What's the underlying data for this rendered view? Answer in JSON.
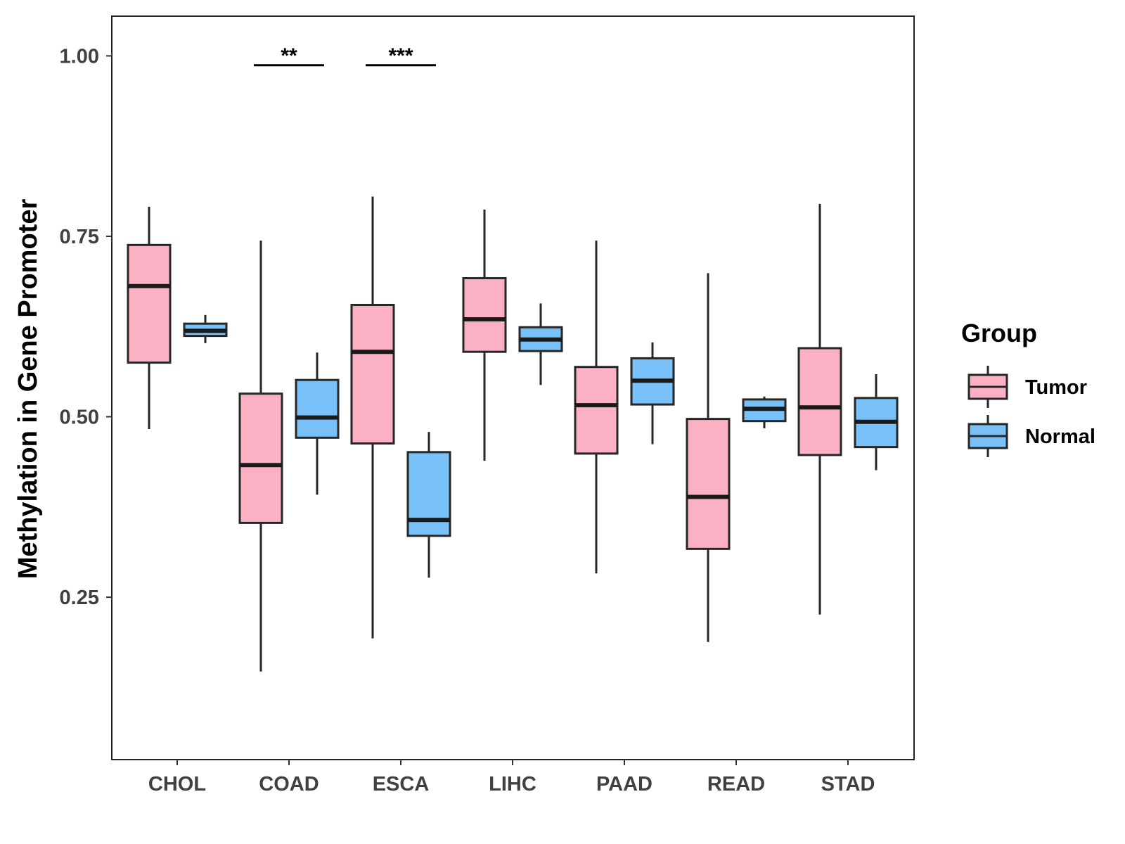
{
  "chart_data": {
    "type": "boxplot",
    "title": "",
    "xlabel": "",
    "ylabel": "Methylation in Gene Promoter",
    "ylim": [
      0.025,
      1.055
    ],
    "yticks": [
      0.25,
      0.5,
      0.75,
      1.0
    ],
    "ytick_labels": [
      "0.25",
      "0.50",
      "0.75",
      "1.00"
    ],
    "grid": false,
    "legend": {
      "title": "Group",
      "position": "right",
      "entries": [
        "Tumor",
        "Normal"
      ]
    },
    "colors": {
      "Tumor": "#fbb1c3",
      "Normal": "#78c0f8",
      "outline": "#262626",
      "median": "#1a1a1a"
    },
    "categories": [
      "CHOL",
      "COAD",
      "ESCA",
      "LIHC",
      "PAAD",
      "READ",
      "STAD"
    ],
    "series": [
      {
        "name": "Tumor",
        "boxes": [
          {
            "min": 0.483,
            "q1": 0.575,
            "median": 0.681,
            "q3": 0.738,
            "max": 0.791
          },
          {
            "min": 0.147,
            "q1": 0.353,
            "median": 0.433,
            "q3": 0.532,
            "max": 0.744
          },
          {
            "min": 0.193,
            "q1": 0.463,
            "median": 0.59,
            "q3": 0.655,
            "max": 0.805
          },
          {
            "min": 0.439,
            "q1": 0.59,
            "median": 0.635,
            "q3": 0.692,
            "max": 0.787
          },
          {
            "min": 0.283,
            "q1": 0.449,
            "median": 0.516,
            "q3": 0.569,
            "max": 0.744
          },
          {
            "min": 0.188,
            "q1": 0.317,
            "median": 0.389,
            "q3": 0.497,
            "max": 0.699
          },
          {
            "min": 0.226,
            "q1": 0.447,
            "median": 0.513,
            "q3": 0.595,
            "max": 0.795
          }
        ]
      },
      {
        "name": "Normal",
        "boxes": [
          {
            "min": 0.602,
            "q1": 0.612,
            "median": 0.619,
            "q3": 0.629,
            "max": 0.641
          },
          {
            "min": 0.392,
            "q1": 0.471,
            "median": 0.499,
            "q3": 0.551,
            "max": 0.589
          },
          {
            "min": 0.277,
            "q1": 0.335,
            "median": 0.357,
            "q3": 0.451,
            "max": 0.479
          },
          {
            "min": 0.544,
            "q1": 0.591,
            "median": 0.607,
            "q3": 0.624,
            "max": 0.657
          },
          {
            "min": 0.462,
            "q1": 0.517,
            "median": 0.55,
            "q3": 0.581,
            "max": 0.603
          },
          {
            "min": 0.484,
            "q1": 0.494,
            "median": 0.511,
            "q3": 0.524,
            "max": 0.528
          },
          {
            "min": 0.426,
            "q1": 0.458,
            "median": 0.493,
            "q3": 0.526,
            "max": 0.559
          }
        ]
      }
    ],
    "annotations": [
      {
        "category": "COAD",
        "label": "**",
        "y": 0.987
      },
      {
        "category": "ESCA",
        "label": "***",
        "y": 0.987
      }
    ]
  }
}
